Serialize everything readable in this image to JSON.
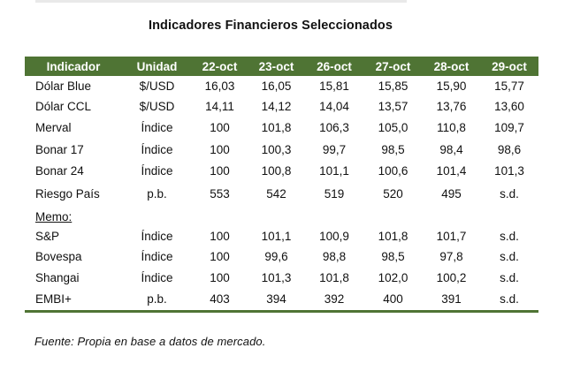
{
  "title": "Indicadores Financieros Seleccionados",
  "table": {
    "headers": [
      "Indicador",
      "Unidad",
      "22-oct",
      "23-oct",
      "26-oct",
      "27-oct",
      "28-oct",
      "29-oct"
    ],
    "rows": [
      {
        "name": "Dólar Blue",
        "unit": "$/USD",
        "values": [
          "16,03",
          "16,05",
          "15,81",
          "15,85",
          "15,90",
          "15,77"
        ]
      },
      {
        "name": "Dólar CCL",
        "unit": "$/USD",
        "values": [
          "14,11",
          "14,12",
          "14,04",
          "13,57",
          "13,76",
          "13,60"
        ]
      },
      {
        "name": "Merval",
        "unit": "Índice",
        "values": [
          "100",
          "101,8",
          "106,3",
          "105,0",
          "110,8",
          "109,7"
        ]
      },
      {
        "name": "Bonar 17",
        "unit": "Índice",
        "values": [
          "100",
          "100,3",
          "99,7",
          "98,5",
          "98,4",
          "98,6"
        ]
      },
      {
        "name": "Bonar 24",
        "unit": "Índice",
        "values": [
          "100",
          "100,8",
          "101,1",
          "100,6",
          "101,4",
          "101,3"
        ]
      },
      {
        "name": "Riesgo País",
        "unit": "p.b.",
        "values": [
          "553",
          "542",
          "519",
          "520",
          "495",
          "s.d."
        ]
      },
      {
        "name": "S&P",
        "unit": "Índice",
        "values": [
          "100",
          "101,1",
          "100,9",
          "101,8",
          "101,7",
          "s.d."
        ]
      },
      {
        "name": "Bovespa",
        "unit": "Índice",
        "values": [
          "100",
          "99,6",
          "98,8",
          "98,5",
          "97,8",
          "s.d."
        ]
      },
      {
        "name": "Shangai",
        "unit": "Índice",
        "values": [
          "100",
          "101,3",
          "101,8",
          "102,0",
          "100,2",
          "s.d."
        ]
      },
      {
        "name": "EMBI+",
        "unit": "p.b.",
        "values": [
          "403",
          "394",
          "392",
          "400",
          "391",
          "s.d."
        ]
      }
    ],
    "memo_label": "Memo:"
  },
  "source": "Fuente: Propia en base a datos de mercado.",
  "colors": {
    "header_bg": "#4f7434",
    "header_text": "#ffffff",
    "rule": "#4f7434"
  }
}
